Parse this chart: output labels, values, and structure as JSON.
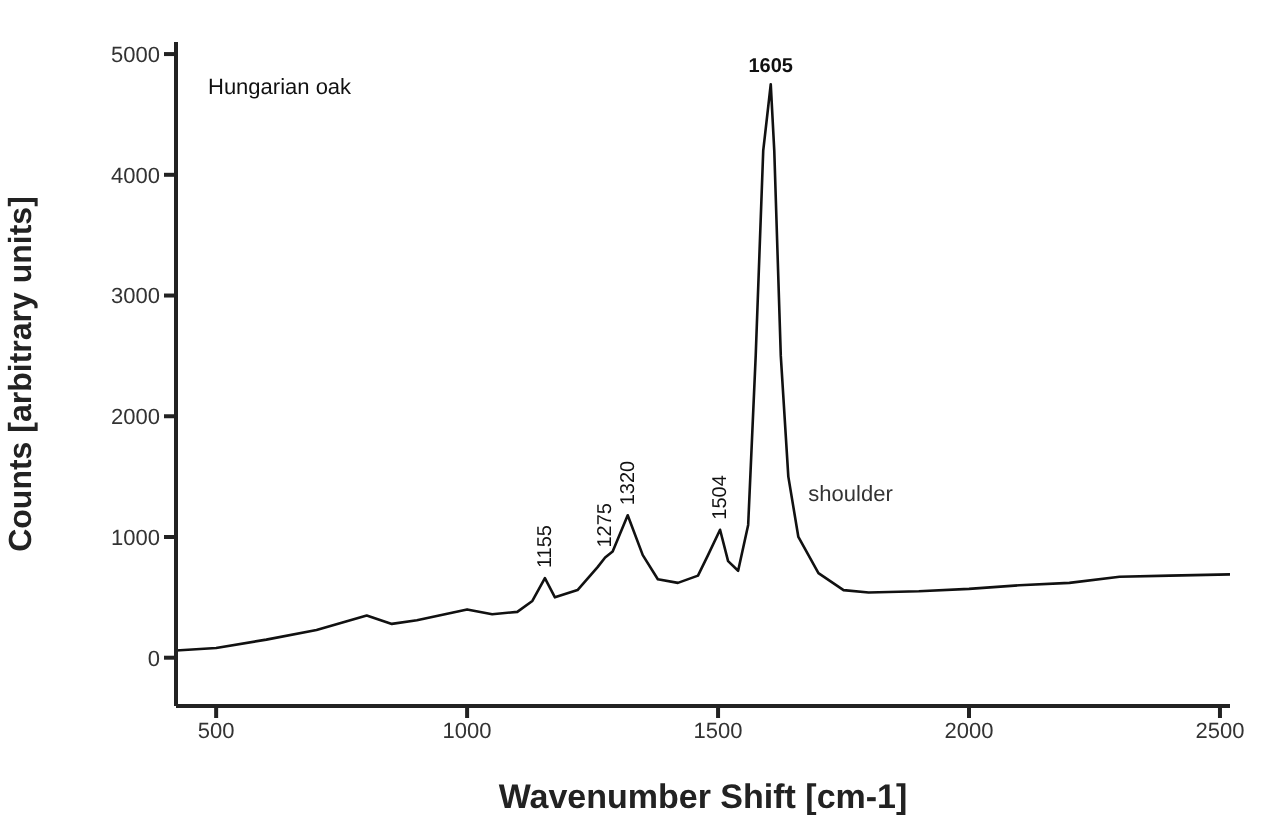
{
  "chart_data": {
    "type": "line",
    "xlabel": "Wavenumber Shift [cm-1]",
    "ylabel": "Counts  [arbitrary units]",
    "x": [
      420,
      500,
      600,
      700,
      800,
      850,
      900,
      1000,
      1050,
      1100,
      1130,
      1155,
      1175,
      1220,
      1260,
      1275,
      1290,
      1320,
      1350,
      1380,
      1420,
      1460,
      1480,
      1504,
      1520,
      1540,
      1560,
      1575,
      1590,
      1605,
      1612,
      1625,
      1640,
      1660,
      1700,
      1750,
      1800,
      1900,
      2000,
      2100,
      2200,
      2300,
      2400,
      2520
    ],
    "series": [
      {
        "color": "#111111",
        "values": [
          60,
          80,
          150,
          230,
          350,
          280,
          310,
          400,
          360,
          380,
          470,
          660,
          500,
          560,
          750,
          830,
          880,
          1180,
          850,
          650,
          620,
          680,
          850,
          1060,
          800,
          720,
          1100,
          2500,
          4200,
          4750,
          4200,
          2500,
          1500,
          1000,
          700,
          560,
          540,
          550,
          570,
          600,
          620,
          670,
          680,
          690
        ]
      }
    ],
    "xlim": [
      420,
      2520
    ],
    "ylim": [
      -400,
      5100
    ],
    "xticks": [
      500,
      1000,
      1500,
      2000,
      2500
    ],
    "yticks": [
      0,
      1000,
      2000,
      3000,
      4000,
      5000
    ],
    "marker": "none",
    "line_style": "solid",
    "annotations": [
      "Hungarian oak",
      {
        "text": "1155",
        "x": 1155,
        "y": 660
      },
      {
        "text": "1275",
        "x": 1275,
        "y": 830
      },
      {
        "text": "1320",
        "x": 1320,
        "y": 1180
      },
      {
        "text": "1504",
        "x": 1504,
        "y": 1060
      },
      {
        "text": "1605",
        "x": 1605,
        "y": 4750
      },
      {
        "text": "shoulder",
        "x": 1660,
        "y": 1000
      }
    ]
  }
}
